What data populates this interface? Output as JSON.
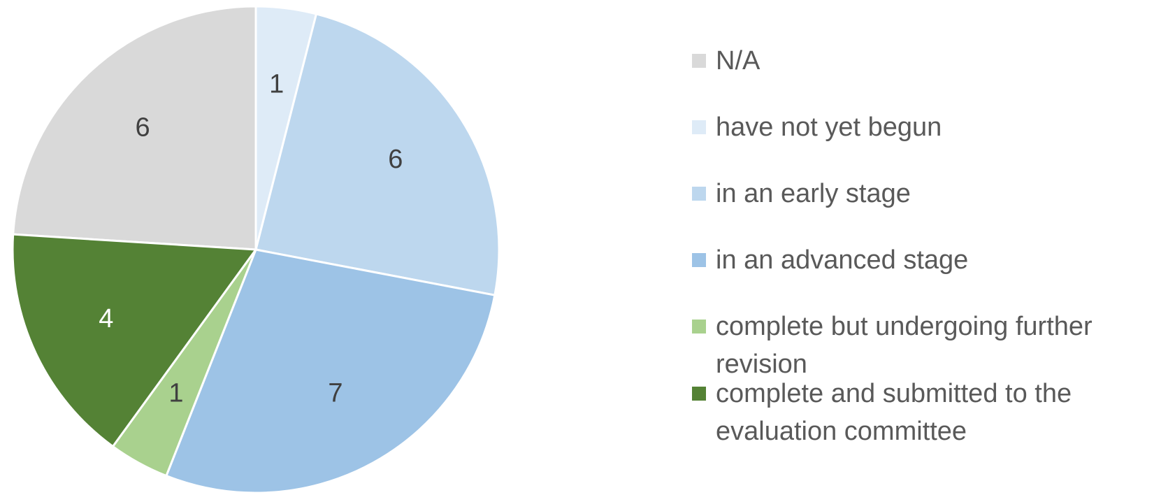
{
  "chart_data": {
    "type": "pie",
    "categories": [
      "N/A",
      "have not yet begun",
      "in an early stage",
      "in an advanced stage",
      "complete but undergoing further revision",
      "complete and submitted to the evaluation committee"
    ],
    "values": [
      6,
      1,
      6,
      7,
      1,
      4
    ],
    "colors": [
      "#d9d9d9",
      "#deebf7",
      "#bdd7ee",
      "#9dc3e6",
      "#a9d18e",
      "#548235"
    ],
    "label_colors": [
      "#404040",
      "#404040",
      "#404040",
      "#404040",
      "#404040",
      "#ffffff"
    ],
    "legend": "right"
  }
}
